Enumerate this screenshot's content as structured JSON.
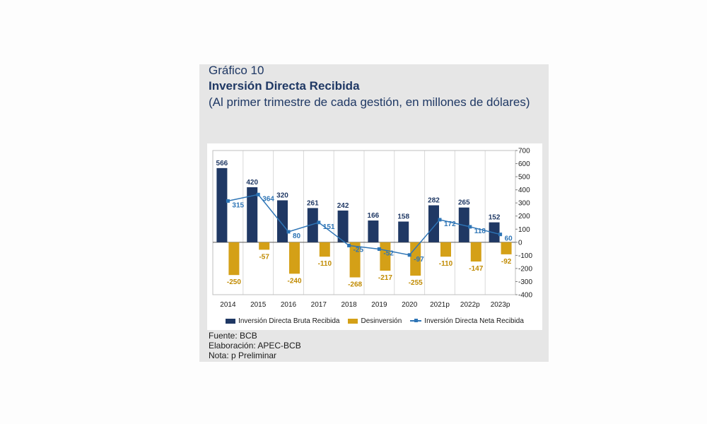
{
  "figure": {
    "label": "Gráfico 10",
    "title": "Inversión Directa Recibida",
    "subtitle": "(Al primer trimestre de cada gestión, en millones de dólares)"
  },
  "chart_data": {
    "type": "bar",
    "categories": [
      "2014",
      "2015",
      "2016",
      "2017",
      "2018",
      "2019",
      "2020",
      "2021p",
      "2022p",
      "2023p"
    ],
    "series": [
      {
        "name": "Inversión Directa Bruta Recibida",
        "type": "bar",
        "color": "#1f3864",
        "values": [
          566,
          420,
          320,
          261,
          242,
          166,
          158,
          282,
          265,
          152
        ]
      },
      {
        "name": "Desinversión",
        "type": "bar",
        "color": "#d4a017",
        "values": [
          -250,
          -57,
          -240,
          -110,
          -268,
          -217,
          -255,
          -110,
          -147,
          -92
        ]
      },
      {
        "name": "Inversión Directa Neta Recibida",
        "type": "line",
        "color": "#2e75b6",
        "values": [
          315,
          364,
          80,
          151,
          -25,
          -52,
          -97,
          172,
          118,
          60
        ]
      }
    ],
    "y_axis": {
      "min": -400,
      "max": 700,
      "step": 100,
      "position": "right",
      "ticks": [
        "700",
        "600",
        "500",
        "400",
        "300",
        "200",
        "100",
        "0",
        "-100",
        "-200",
        "-300",
        "-400"
      ]
    },
    "grid": "vertical",
    "legend": "bottom"
  },
  "notes": {
    "source": "Fuente: BCB",
    "elaboration": "Elaboración: APEC-BCB",
    "note": "Nota: p Preliminar"
  }
}
